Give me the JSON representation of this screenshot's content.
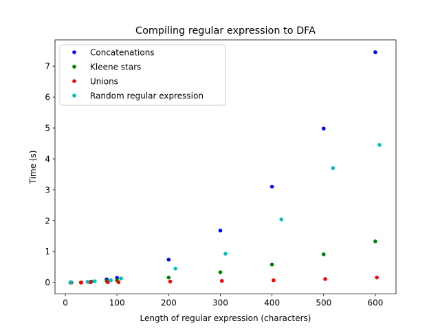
{
  "chart_data": {
    "type": "scatter",
    "title": "Compiling regular expression to DFA",
    "xlabel": "Length of regular expression (characters)",
    "ylabel": "Time (s)",
    "xlim": [
      -20,
      640
    ],
    "ylim": [
      -0.37,
      7.85
    ],
    "xticks": [
      0,
      100,
      200,
      300,
      400,
      500,
      600
    ],
    "yticks": [
      0,
      1,
      2,
      3,
      4,
      5,
      6,
      7
    ],
    "grid": false,
    "legend_placement": "top-left",
    "series": [
      {
        "name": "Concatenations",
        "color": "#0000ff",
        "x": [
          10,
          50,
          80,
          100,
          200,
          300,
          400,
          500,
          600
        ],
        "y": [
          0.0,
          0.03,
          0.1,
          0.15,
          0.74,
          1.68,
          3.1,
          4.98,
          7.45
        ]
      },
      {
        "name": "Kleene stars",
        "color": "#008000",
        "x": [
          10,
          30,
          50,
          80,
          100,
          200,
          300,
          400,
          500,
          600
        ],
        "y": [
          0.0,
          0.0,
          0.02,
          0.05,
          0.07,
          0.16,
          0.33,
          0.58,
          0.91,
          1.33
        ]
      },
      {
        "name": "Unions",
        "color": "#ff0000",
        "x": [
          12,
          31,
          48,
          82,
          103,
          203,
          303,
          403,
          503,
          603
        ],
        "y": [
          0.0,
          0.0,
          0.01,
          0.01,
          0.01,
          0.03,
          0.05,
          0.07,
          0.11,
          0.16
        ]
      },
      {
        "name": "Random regular expression",
        "color": "#00bfbf",
        "x": [
          11,
          43,
          57,
          88,
          108,
          213,
          310,
          418,
          518,
          608
        ],
        "y": [
          0.01,
          0.02,
          0.04,
          0.07,
          0.13,
          0.45,
          0.93,
          2.04,
          3.7,
          4.45
        ]
      }
    ]
  }
}
